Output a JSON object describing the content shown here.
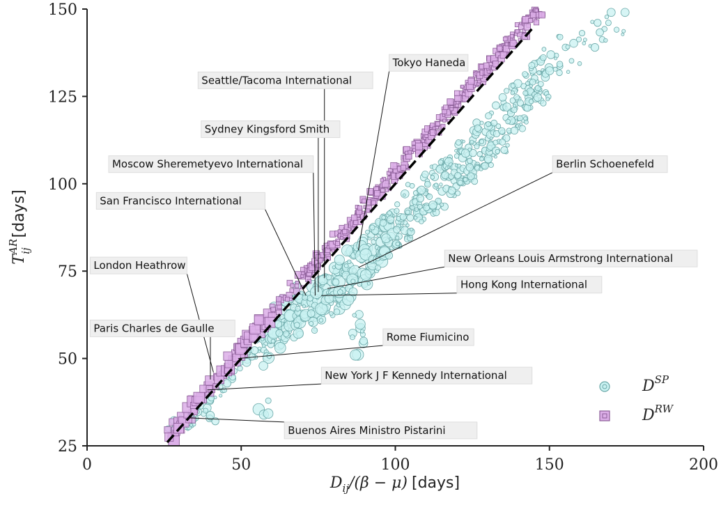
{
  "colors": {
    "sp_fill": "#c9f1f1",
    "sp_stroke": "#6aa8a8",
    "rw_fill": "#dcaee8",
    "rw_stroke": "#8a5c96",
    "diagonal": "#000000",
    "annotation_box": "#efefef"
  },
  "chart_data": {
    "type": "scatter",
    "x_axis": {
      "label_main": "D",
      "label_sub": "ij",
      "label_rest": "/(β − μ)",
      "label_unit": "[days]",
      "range": [
        0,
        200
      ],
      "ticks": [
        0,
        50,
        100,
        150,
        200
      ],
      "tick_labels": [
        "0",
        "50",
        "100",
        "150",
        "200"
      ]
    },
    "y_axis": {
      "label_main": "T",
      "label_sup": "AR",
      "label_sub": "ij",
      "label_unit": "[days]",
      "range": [
        25,
        150
      ],
      "ticks": [
        25,
        50,
        75,
        100,
        125,
        150
      ],
      "tick_labels": [
        "25",
        "50",
        "75",
        "100",
        "125",
        "150"
      ]
    },
    "grid": false,
    "legend": {
      "placement": "bottom-right",
      "entries": [
        {
          "series": "sp",
          "main": "D",
          "sup": "SP",
          "marker": "circle"
        },
        {
          "series": "rw",
          "main": "D",
          "sup": "RW",
          "marker": "square"
        }
      ]
    },
    "diagonal_line": {
      "style": "dashed",
      "from": [
        26,
        26
      ],
      "to": [
        145,
        145
      ]
    },
    "series": [
      {
        "id": "sp",
        "marker": "circle",
        "description_points": [
          [
            28,
            28
          ],
          [
            30,
            30
          ],
          [
            32,
            31
          ],
          [
            34,
            33
          ],
          [
            36,
            35
          ],
          [
            38,
            37
          ],
          [
            40,
            40
          ],
          [
            42,
            41
          ],
          [
            44,
            43
          ],
          [
            46,
            45
          ],
          [
            48,
            47
          ],
          [
            50,
            49
          ],
          [
            52,
            51
          ],
          [
            54,
            52
          ],
          [
            56,
            54
          ],
          [
            58,
            56
          ],
          [
            60,
            57
          ],
          [
            62,
            59
          ],
          [
            64,
            60
          ],
          [
            66,
            62
          ],
          [
            68,
            63
          ],
          [
            70,
            64
          ],
          [
            72,
            65
          ],
          [
            74,
            66
          ],
          [
            76,
            67
          ],
          [
            78,
            68
          ],
          [
            80,
            70
          ],
          [
            82,
            72
          ],
          [
            84,
            73
          ],
          [
            86,
            75
          ],
          [
            88,
            76
          ],
          [
            90,
            78
          ],
          [
            92,
            80
          ],
          [
            94,
            82
          ],
          [
            96,
            84
          ],
          [
            98,
            85
          ],
          [
            100,
            87
          ],
          [
            102,
            89
          ],
          [
            104,
            91
          ],
          [
            106,
            93
          ],
          [
            108,
            95
          ],
          [
            110,
            97
          ],
          [
            112,
            98
          ],
          [
            114,
            100
          ],
          [
            116,
            101
          ],
          [
            118,
            103
          ],
          [
            120,
            104
          ],
          [
            122,
            106
          ],
          [
            124,
            107
          ],
          [
            126,
            109
          ],
          [
            128,
            111
          ],
          [
            130,
            112
          ],
          [
            132,
            114
          ],
          [
            134,
            116
          ],
          [
            136,
            118
          ],
          [
            138,
            120
          ],
          [
            140,
            122
          ],
          [
            142,
            124
          ],
          [
            144,
            126
          ],
          [
            146,
            128
          ],
          [
            148,
            130
          ],
          [
            150,
            132
          ],
          [
            152,
            134
          ],
          [
            155,
            136
          ],
          [
            158,
            138
          ],
          [
            162,
            140
          ],
          [
            166,
            142
          ],
          [
            170,
            144
          ],
          [
            175,
            146
          ],
          [
            57,
            36
          ],
          [
            40,
            33
          ],
          [
            58,
            50
          ],
          [
            88,
            57
          ]
        ]
      },
      {
        "id": "rw",
        "marker": "square",
        "description_points": [
          [
            27,
            28
          ],
          [
            29,
            30
          ],
          [
            31,
            32
          ],
          [
            33,
            34
          ],
          [
            35,
            36
          ],
          [
            37,
            38
          ],
          [
            39,
            41
          ],
          [
            41,
            43
          ],
          [
            43,
            45
          ],
          [
            45,
            47
          ],
          [
            47,
            50
          ],
          [
            49,
            52
          ],
          [
            51,
            54
          ],
          [
            53,
            56
          ],
          [
            55,
            58
          ],
          [
            57,
            60
          ],
          [
            59,
            62
          ],
          [
            61,
            64
          ],
          [
            63,
            66
          ],
          [
            65,
            68
          ],
          [
            67,
            70
          ],
          [
            69,
            72
          ],
          [
            71,
            74
          ],
          [
            73,
            76
          ],
          [
            75,
            78
          ],
          [
            77,
            80
          ],
          [
            79,
            82
          ],
          [
            81,
            84
          ],
          [
            83,
            86
          ],
          [
            85,
            88
          ],
          [
            87,
            90
          ],
          [
            89,
            92
          ],
          [
            91,
            94
          ],
          [
            93,
            96
          ],
          [
            95,
            98
          ],
          [
            97,
            100
          ],
          [
            99,
            102
          ],
          [
            101,
            104
          ],
          [
            103,
            106
          ],
          [
            105,
            108
          ],
          [
            107,
            110
          ],
          [
            109,
            112
          ],
          [
            111,
            114
          ],
          [
            113,
            116
          ],
          [
            115,
            118
          ],
          [
            117,
            120
          ],
          [
            119,
            122
          ],
          [
            121,
            124
          ],
          [
            123,
            126
          ],
          [
            125,
            128
          ],
          [
            127,
            130
          ],
          [
            129,
            132
          ],
          [
            131,
            134
          ],
          [
            133,
            136
          ],
          [
            135,
            138
          ],
          [
            137,
            140
          ],
          [
            139,
            142
          ],
          [
            141,
            144
          ],
          [
            143,
            146
          ],
          [
            145,
            148
          ],
          [
            147,
            150
          ]
        ]
      }
    ],
    "annotations": [
      {
        "text": "Tokyo Haneda",
        "target": [
          88,
          81
        ],
        "box_x": 98,
        "box_y": 137,
        "anchor": "start"
      },
      {
        "text": "Seattle/Tacoma International",
        "target": [
          77,
          73
        ],
        "box_x": 36,
        "box_y": 132,
        "anchor": "start"
      },
      {
        "text": "Sydney Kingsford Smith",
        "target": [
          75,
          69
        ],
        "box_x": 37,
        "box_y": 118,
        "anchor": "start"
      },
      {
        "text": "Moscow Sheremetyevo International",
        "target": [
          74,
          68
        ],
        "box_x": 7,
        "box_y": 108,
        "anchor": "start"
      },
      {
        "text": "San Francisco International",
        "target": [
          71,
          68
        ],
        "box_x": 3,
        "box_y": 97.5,
        "anchor": "start"
      },
      {
        "text": "Berlin Schoenefeld",
        "target": [
          88,
          76
        ],
        "box_x": 151,
        "box_y": 108,
        "anchor": "start"
      },
      {
        "text": "London Heathrow",
        "target": [
          41,
          46
        ],
        "box_x": 1,
        "box_y": 79,
        "anchor": "start"
      },
      {
        "text": "New Orleans Louis Armstrong International",
        "target": [
          78,
          70
        ],
        "box_x": 116,
        "box_y": 81,
        "anchor": "start"
      },
      {
        "text": "Hong Kong International",
        "target": [
          76,
          68
        ],
        "box_x": 120,
        "box_y": 73.5,
        "anchor": "start"
      },
      {
        "text": "Paris Charles de Gaulle",
        "target": [
          40,
          44
        ],
        "box_x": 1,
        "box_y": 61,
        "anchor": "start"
      },
      {
        "text": "Rome Fiumicino",
        "target": [
          49,
          50
        ],
        "box_x": 96,
        "box_y": 58.5,
        "anchor": "start"
      },
      {
        "text": "New York J F Kennedy International",
        "target": [
          39,
          41
        ],
        "box_x": 76,
        "box_y": 47.5,
        "anchor": "start"
      },
      {
        "text": "Buenos Aires Ministro Pistarini",
        "target": [
          33,
          33
        ],
        "box_x": 64,
        "box_y": 31.8,
        "anchor": "start"
      }
    ]
  }
}
